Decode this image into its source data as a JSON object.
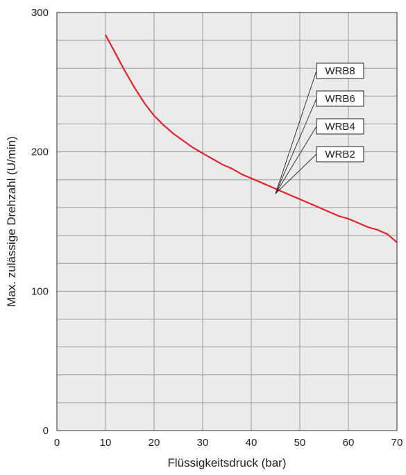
{
  "chart_data": {
    "type": "line",
    "title": "",
    "xlabel": "Flüssigkeitsdruck (bar)",
    "ylabel": "Max. zulässige Drehzahl (U/min)",
    "xlim": [
      0,
      70
    ],
    "ylim": [
      0,
      300
    ],
    "x_ticks": [
      "0",
      "10",
      "20",
      "30",
      "40",
      "50",
      "60",
      "70"
    ],
    "y_ticks": [
      "0",
      "100",
      "200",
      "300"
    ],
    "grid": true,
    "series": [
      {
        "name": "WRB2 / WRB4 / WRB6 / WRB8",
        "color": "#e8202a",
        "x": [
          10,
          12,
          14,
          16,
          18,
          20,
          22,
          24,
          26,
          28,
          30,
          32,
          34,
          36,
          38,
          40,
          42,
          44,
          46,
          48,
          50,
          52,
          54,
          56,
          58,
          60,
          62,
          64,
          66,
          68,
          70
        ],
        "y": [
          284,
          271,
          258,
          246,
          235,
          226,
          219,
          213,
          208,
          203,
          199,
          195,
          191,
          188,
          184,
          181,
          178,
          175,
          172,
          169,
          166,
          163,
          160,
          157,
          154,
          152,
          149,
          146,
          144,
          141,
          135
        ]
      }
    ],
    "annotations": {
      "labels": [
        "WRB8",
        "WRB6",
        "WRB4",
        "WRB2"
      ],
      "point": [
        45,
        170
      ]
    }
  }
}
